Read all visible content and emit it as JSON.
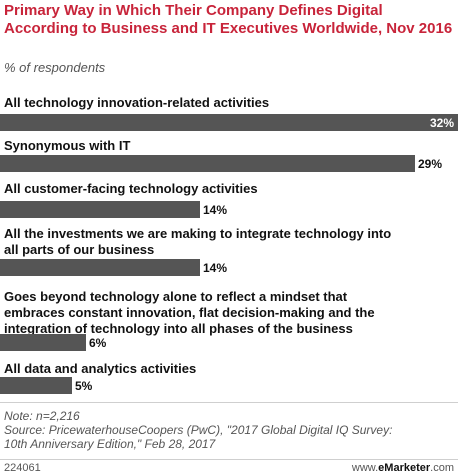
{
  "chart_data": {
    "type": "bar",
    "orientation": "horizontal",
    "title": "Primary Way in Which Their Company Defines Digital According to Business and IT Executives Worldwide, Nov 2016",
    "subtitle": "% of respondents",
    "categories": [
      "All technology innovation-related activities",
      "Synonymous with IT",
      "All customer-facing technology activities",
      "All the investments we are making to integrate technology into all parts of our business",
      "Goes beyond technology alone to reflect a mindset that embraces constant innovation, flat decision-making and the integration of technology into all phases of the business",
      "All data and analytics activities"
    ],
    "category_lines": [
      [
        "All technology innovation-related activities"
      ],
      [
        "Synonymous with IT"
      ],
      [
        "All customer-facing technology activities"
      ],
      [
        "All the investments we are making to integrate technology into",
        "all parts of our business"
      ],
      [
        "Goes beyond technology alone to reflect a mindset that",
        "embraces constant innovation, flat decision-making and the",
        "integration of technology into all phases of the business"
      ],
      [
        "All data and analytics activities"
      ]
    ],
    "values": [
      32,
      29,
      14,
      14,
      6,
      5
    ],
    "value_labels": [
      "32%",
      "29%",
      "14%",
      "14%",
      "6%",
      "5%"
    ],
    "xlim": [
      0,
      32
    ],
    "grid": false,
    "legend": "none"
  },
  "notes": {
    "note": "Note: n=2,216",
    "source_line1": "Source: PricewaterhouseCoopers (PwC), \"2017 Global Digital IQ Survey:",
    "source_line2": "10th Anniversary Edition,\" Feb 28, 2017"
  },
  "footer": {
    "id": "224061",
    "brand_prefix": "www.",
    "brand_name": "eMarketer",
    "brand_suffix": ".com"
  },
  "colors": {
    "title": "#c8243a",
    "bar": "#555555"
  }
}
